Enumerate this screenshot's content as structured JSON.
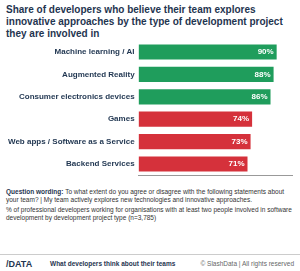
{
  "chart_data": {
    "type": "bar",
    "orientation": "horizontal",
    "title": "Share of developers who believe their team explores innovative approaches by the type of development project they are involved in",
    "categories": [
      "Machine learning / AI",
      "Augmented Reality",
      "Consumer electronics devices",
      "Games",
      "Web apps / Software as a Service",
      "Backend Services"
    ],
    "values": [
      90,
      88,
      86,
      74,
      73,
      71
    ],
    "value_labels": [
      "90%",
      "88%",
      "86%",
      "74%",
      "73%",
      "71%"
    ],
    "colors": [
      "#1f9d5c",
      "#1f9d5c",
      "#1f9d5c",
      "#d5313b",
      "#d5313b",
      "#d5313b"
    ],
    "xlim": [
      0,
      100
    ],
    "grid": false,
    "data_labels": true,
    "tick_labels": "y",
    "annotations": [
      "Question wording:",
      "To what extent do you agree or disagree with the following statements about your team? | My team actively explores new technologies and innovative approaches.",
      "% of professional developers working for organisations with at least two people involved in software development by development project type (n=3,785)",
      "/DATA",
      "What developers think about their teams",
      "© SlashData | All rights reserved"
    ]
  }
}
